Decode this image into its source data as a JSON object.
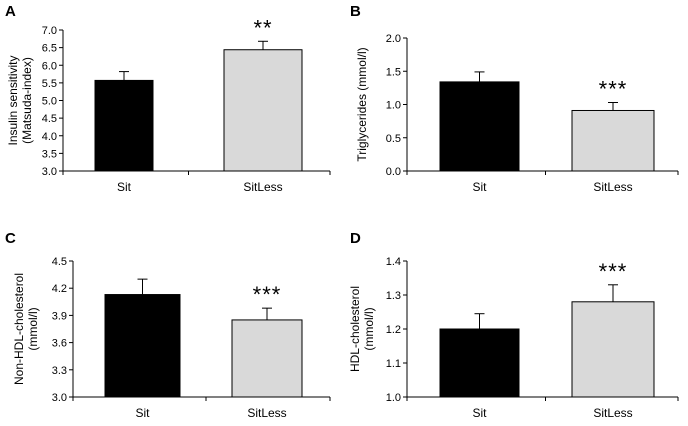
{
  "chart_data": [
    {
      "type": "bar",
      "panel": "A",
      "ylabel_lines": [
        "Insulin sensitivity",
        "(Matsuda-index)"
      ],
      "categories": [
        "Sit",
        "SitLess"
      ],
      "values": [
        5.57,
        6.44
      ],
      "errors": [
        0.25,
        0.24
      ],
      "colors": [
        "#000000",
        "#d9d9d9"
      ],
      "ylim": [
        3.0,
        7.0
      ],
      "ticks": [
        "3.0",
        "3.5",
        "4.0",
        "4.5",
        "5.0",
        "5.5",
        "6.0",
        "6.5",
        "7.0"
      ],
      "significance": [
        "",
        "**"
      ]
    },
    {
      "type": "bar",
      "panel": "B",
      "ylabel_lines": [
        "Triglycerides (mmol/l)"
      ],
      "categories": [
        "Sit",
        "SitLess"
      ],
      "values": [
        1.34,
        0.91
      ],
      "errors": [
        0.15,
        0.12
      ],
      "colors": [
        "#000000",
        "#d9d9d9"
      ],
      "ylim": [
        0.0,
        2.0
      ],
      "ticks": [
        "0.0",
        "0.5",
        "1.0",
        "1.5",
        "2.0"
      ],
      "significance": [
        "",
        "***"
      ]
    },
    {
      "type": "bar",
      "panel": "C",
      "ylabel_lines": [
        "Non-HDL-cholesterol",
        "(mmol/l)"
      ],
      "categories": [
        "Sit",
        "SitLess"
      ],
      "values": [
        4.13,
        3.85
      ],
      "errors": [
        0.17,
        0.13
      ],
      "colors": [
        "#000000",
        "#d9d9d9"
      ],
      "ylim": [
        3.0,
        4.5
      ],
      "ticks": [
        "3.0",
        "3.3",
        "3.6",
        "3.9",
        "4.2",
        "4.5"
      ],
      "significance": [
        "",
        "***"
      ]
    },
    {
      "type": "bar",
      "panel": "D",
      "ylabel_lines": [
        "HDL-cholesterol",
        "(mmol/l)"
      ],
      "categories": [
        "Sit",
        "SitLess"
      ],
      "values": [
        1.2,
        1.28
      ],
      "errors": [
        0.045,
        0.05
      ],
      "colors": [
        "#000000",
        "#d9d9d9"
      ],
      "ylim": [
        1.0,
        1.4
      ],
      "ticks": [
        "1.0",
        "1.1",
        "1.2",
        "1.3",
        "1.4"
      ],
      "significance": [
        "",
        "***"
      ]
    }
  ]
}
